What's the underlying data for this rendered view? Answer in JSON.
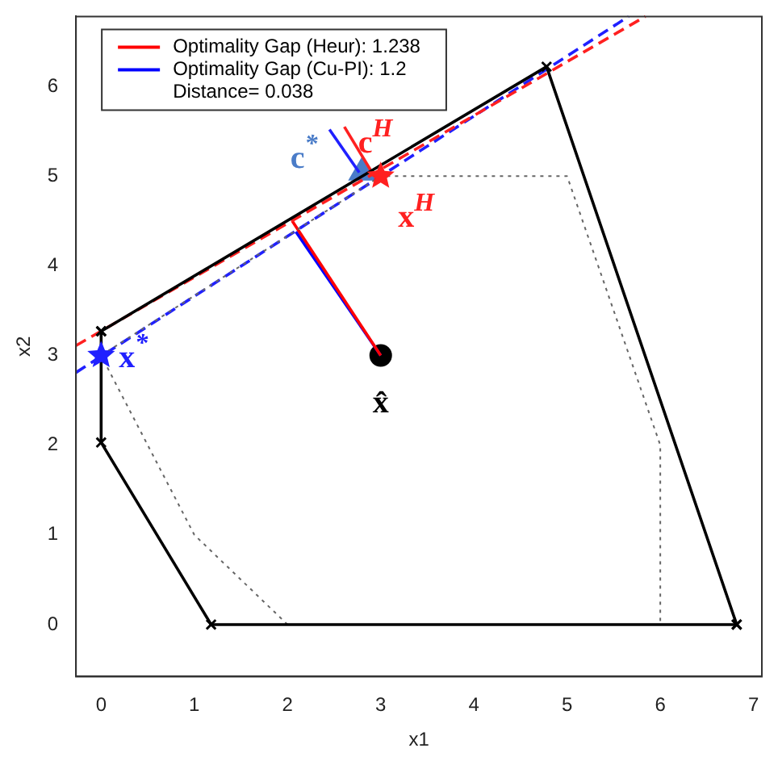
{
  "chart_data": {
    "type": "line",
    "xlabel": "x1",
    "ylabel": "x2",
    "xlim": [
      -0.27,
      7.09
    ],
    "ylim": [
      -0.58,
      6.78
    ],
    "xticks": [
      0,
      1,
      2,
      3,
      4,
      5,
      6,
      7
    ],
    "yticks": [
      0,
      1,
      2,
      3,
      4,
      5,
      6
    ],
    "grid": false,
    "legend": "top left",
    "series": [
      {
        "color": "#000000",
        "marker": "cross",
        "line_style": "solid",
        "x": [
          0,
          4.78,
          6.82
        ],
        "values": [
          3.27,
          6.22,
          0
        ]
      },
      {
        "color": "#000000",
        "marker": "cross",
        "line_style": "solid",
        "x": [
          0,
          0,
          1.18,
          6.82
        ],
        "values": [
          3.27,
          2.03,
          0,
          0
        ]
      },
      {
        "color": "#666666",
        "marker": "none",
        "line_style": "dotted",
        "x": [
          2,
          1,
          0,
          3,
          5,
          6,
          6
        ],
        "values": [
          0,
          1,
          3,
          5,
          5,
          2,
          0
        ]
      },
      {
        "color": "#ff2020",
        "marker": "none",
        "line_style": "dashed",
        "x": [
          -0.27,
          5.84
        ],
        "values": [
          3.11,
          6.78
        ]
      },
      {
        "color": "#2020ff",
        "marker": "none",
        "line_style": "dashed",
        "x": [
          -0.27,
          5.66
        ],
        "values": [
          2.81,
          6.78
        ]
      },
      {
        "name": "Optimality Gap (Heur): 1.238",
        "color": "#ff0000",
        "marker": "none",
        "line_style": "solid",
        "x": [
          2.05,
          3
        ],
        "values": [
          4.5,
          3
        ]
      },
      {
        "name": "Optimality Gap (Cu-PI): 1.2",
        "color": "#0000ff",
        "marker": "none",
        "line_style": "solid",
        "x": [
          2.09,
          3
        ],
        "values": [
          4.38,
          3
        ]
      },
      {
        "color": "#ff2020",
        "marker": "none",
        "line_style": "solid",
        "x": [
          2.61,
          2.89
        ],
        "values": [
          5.55,
          5.07
        ]
      },
      {
        "color": "#2020ff",
        "marker": "none",
        "line_style": "solid",
        "x": [
          2.45,
          2.77
        ],
        "values": [
          5.52,
          5.04
        ]
      },
      {
        "type": "scatter",
        "color": "#2020ff",
        "marker": "star",
        "x": [
          0
        ],
        "values": [
          3
        ]
      },
      {
        "type": "scatter",
        "color": "#ff2020",
        "marker": "star",
        "x": [
          3
        ],
        "values": [
          5
        ]
      },
      {
        "type": "scatter",
        "color": "#000000",
        "marker": "circle",
        "x": [
          3
        ],
        "values": [
          3
        ]
      },
      {
        "type": "scatter",
        "color": "#4a7cc8",
        "marker": "triangle",
        "x": [
          2.8
        ],
        "values": [
          5.04
        ]
      }
    ],
    "annotations": [
      "Distance= 0.038",
      {
        "text": "x$^{*}$",
        "x": 0,
        "y": 3
      },
      {
        "text": "x$^{H}$",
        "x": 3,
        "y": 5
      },
      {
        "text": "x̂",
        "x": 3,
        "y": 3
      },
      {
        "text": "c$^{*}$",
        "x": 2.8,
        "y": 5.04
      },
      {
        "text": "c$^{H}$",
        "x": 2.89,
        "y": 5.07
      }
    ]
  }
}
